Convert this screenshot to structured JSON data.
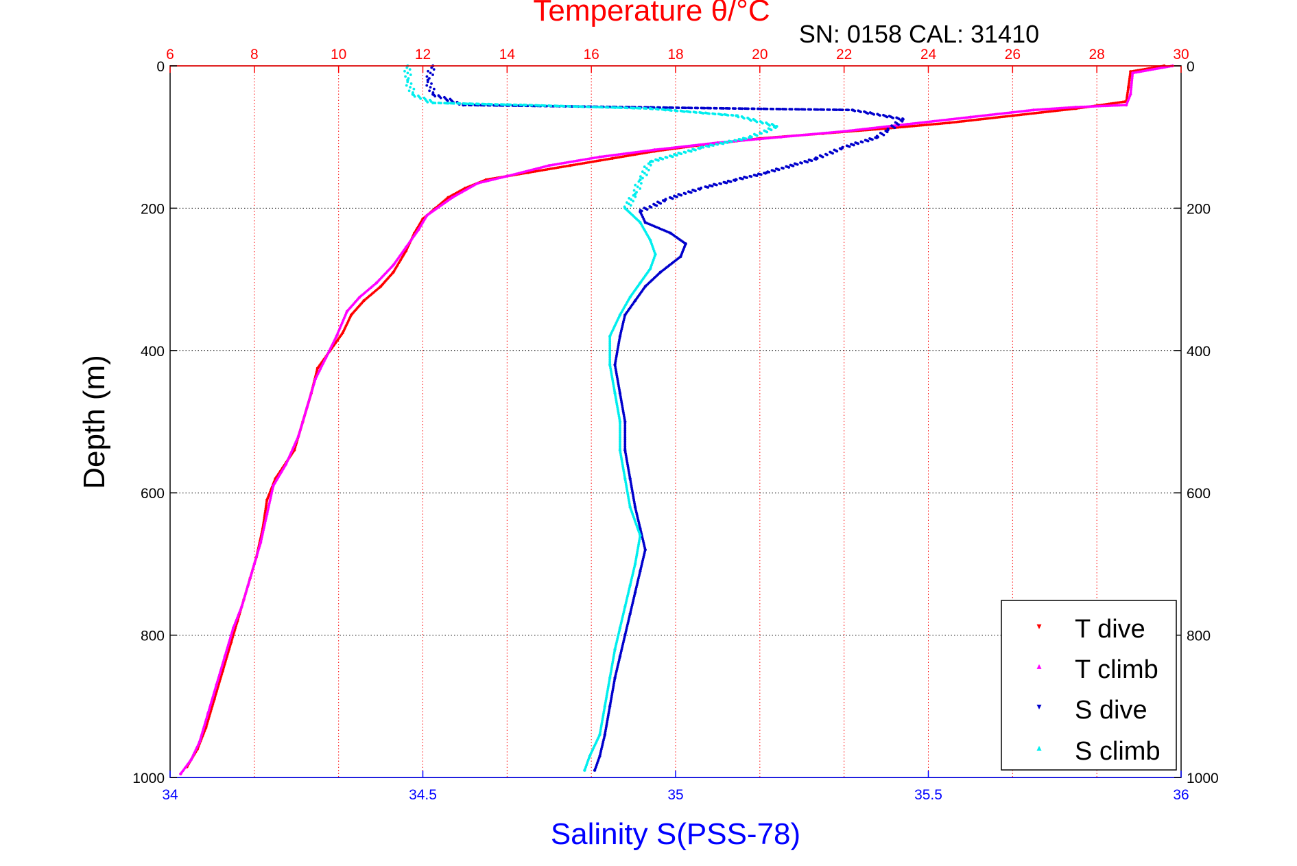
{
  "chart_data": {
    "type": "scatter",
    "title": "Temperature θ/°C",
    "annotation": "SN: 0158  CAL: 31410",
    "ylabel": "Depth (m)",
    "xlabel": "Salinity S(PSS-78)",
    "x2label": "Temperature θ/°C",
    "ylim": [
      0,
      1000
    ],
    "y_reversed": true,
    "xlim": [
      34,
      36
    ],
    "x2lim": [
      6,
      30
    ],
    "y_ticks": [
      0,
      200,
      400,
      600,
      800,
      1000
    ],
    "x_ticks": [
      34,
      34.5,
      35,
      35.5,
      36
    ],
    "x2_ticks": [
      6,
      8,
      10,
      12,
      14,
      16,
      18,
      20,
      22,
      24,
      26,
      28,
      30
    ],
    "x_tick_labels": [
      "34",
      "34.5",
      "35",
      "35.5",
      "36"
    ],
    "x2_tick_labels": [
      "6",
      "8",
      "10",
      "12",
      "14",
      "16",
      "18",
      "20",
      "22",
      "24",
      "26",
      "28",
      "30"
    ],
    "y_tick_labels": [
      "0",
      "200",
      "400",
      "600",
      "800",
      "1000"
    ],
    "grid": true,
    "legend_position": "bottom-right",
    "colors": {
      "t_dive": "#ff0000",
      "t_climb": "#ff00ff",
      "s_dive": "#0000cc",
      "s_climb": "#00eeee",
      "axis_top": "#ff0000",
      "axis_bottom": "#0000ff"
    },
    "series": [
      {
        "name": "T dive",
        "axis": "temperature",
        "points": [
          [
            29.6,
            0
          ],
          [
            28.8,
            8
          ],
          [
            28.75,
            30
          ],
          [
            28.7,
            50
          ],
          [
            27.5,
            60
          ],
          [
            26,
            70
          ],
          [
            24.5,
            80
          ],
          [
            23,
            88
          ],
          [
            21.5,
            95
          ],
          [
            20,
            102
          ],
          [
            18.5,
            112
          ],
          [
            17.5,
            120
          ],
          [
            16.5,
            130
          ],
          [
            15.5,
            140
          ],
          [
            14.5,
            150
          ],
          [
            13.5,
            160
          ],
          [
            13,
            172
          ],
          [
            12.6,
            185
          ],
          [
            12.3,
            200
          ],
          [
            12,
            215
          ],
          [
            11.8,
            235
          ],
          [
            11.6,
            260
          ],
          [
            11.3,
            290
          ],
          [
            11,
            310
          ],
          [
            10.6,
            330
          ],
          [
            10.3,
            350
          ],
          [
            10.1,
            375
          ],
          [
            9.8,
            400
          ],
          [
            9.5,
            425
          ],
          [
            9.35,
            460
          ],
          [
            9.15,
            500
          ],
          [
            8.95,
            540
          ],
          [
            8.5,
            580
          ],
          [
            8.3,
            610
          ],
          [
            8.2,
            650
          ],
          [
            8.05,
            690
          ],
          [
            7.9,
            720
          ],
          [
            7.75,
            750
          ],
          [
            7.6,
            780
          ],
          [
            7.45,
            810
          ],
          [
            7.25,
            850
          ],
          [
            7.05,
            890
          ],
          [
            6.85,
            930
          ],
          [
            6.65,
            960
          ],
          [
            6.4,
            985
          ]
        ]
      },
      {
        "name": "T climb",
        "axis": "temperature",
        "points": [
          [
            29.8,
            0
          ],
          [
            28.85,
            10
          ],
          [
            28.8,
            40
          ],
          [
            28.7,
            55
          ],
          [
            27.5,
            58
          ],
          [
            26.5,
            62
          ],
          [
            25,
            72
          ],
          [
            23.5,
            82
          ],
          [
            22,
            92
          ],
          [
            20.5,
            100
          ],
          [
            19,
            108
          ],
          [
            17.5,
            118
          ],
          [
            16.2,
            128
          ],
          [
            15,
            140
          ],
          [
            14,
            155
          ],
          [
            13.3,
            165
          ],
          [
            12.7,
            185
          ],
          [
            12.1,
            210
          ],
          [
            11.9,
            230
          ],
          [
            11.6,
            255
          ],
          [
            11.3,
            280
          ],
          [
            10.9,
            305
          ],
          [
            10.5,
            325
          ],
          [
            10.2,
            345
          ],
          [
            9.95,
            380
          ],
          [
            9.7,
            410
          ],
          [
            9.45,
            440
          ],
          [
            9.25,
            480
          ],
          [
            9.05,
            520
          ],
          [
            8.75,
            560
          ],
          [
            8.45,
            590
          ],
          [
            8.3,
            630
          ],
          [
            8.15,
            670
          ],
          [
            8,
            700
          ],
          [
            7.85,
            730
          ],
          [
            7.7,
            760
          ],
          [
            7.5,
            790
          ],
          [
            7.3,
            830
          ],
          [
            7.1,
            870
          ],
          [
            6.9,
            910
          ],
          [
            6.7,
            950
          ],
          [
            6.5,
            975
          ],
          [
            6.25,
            995
          ]
        ]
      },
      {
        "name": "S dive",
        "axis": "salinity",
        "points": [
          [
            34.52,
            0
          ],
          [
            34.51,
            20
          ],
          [
            34.52,
            40
          ],
          [
            34.58,
            55
          ],
          [
            35.35,
            62
          ],
          [
            35.45,
            75
          ],
          [
            35.42,
            90
          ],
          [
            35.4,
            100
          ],
          [
            35.33,
            115
          ],
          [
            35.28,
            130
          ],
          [
            35.18,
            150
          ],
          [
            35.12,
            160
          ],
          [
            35.05,
            172
          ],
          [
            34.98,
            188
          ],
          [
            34.93,
            205
          ],
          [
            34.94,
            220
          ],
          [
            34.99,
            235
          ],
          [
            35.02,
            250
          ],
          [
            35.01,
            268
          ],
          [
            34.97,
            290
          ],
          [
            34.94,
            310
          ],
          [
            34.92,
            330
          ],
          [
            34.9,
            350
          ],
          [
            34.89,
            380
          ],
          [
            34.88,
            420
          ],
          [
            34.89,
            460
          ],
          [
            34.9,
            500
          ],
          [
            34.9,
            540
          ],
          [
            34.91,
            580
          ],
          [
            34.92,
            620
          ],
          [
            34.93,
            650
          ],
          [
            34.94,
            680
          ],
          [
            34.93,
            710
          ],
          [
            34.92,
            740
          ],
          [
            34.91,
            770
          ],
          [
            34.9,
            800
          ],
          [
            34.89,
            830
          ],
          [
            34.88,
            860
          ],
          [
            34.87,
            900
          ],
          [
            34.86,
            940
          ],
          [
            34.85,
            970
          ],
          [
            34.84,
            990
          ]
        ]
      },
      {
        "name": "S climb",
        "axis": "salinity",
        "points": [
          [
            34.47,
            0
          ],
          [
            34.47,
            20
          ],
          [
            34.48,
            40
          ],
          [
            34.52,
            52
          ],
          [
            34.7,
            55
          ],
          [
            34.95,
            60
          ],
          [
            35.12,
            70
          ],
          [
            35.2,
            85
          ],
          [
            35.15,
            100
          ],
          [
            35.05,
            115
          ],
          [
            34.95,
            135
          ],
          [
            34.93,
            160
          ],
          [
            34.92,
            180
          ],
          [
            34.9,
            200
          ],
          [
            34.93,
            220
          ],
          [
            34.95,
            245
          ],
          [
            34.96,
            265
          ],
          [
            34.95,
            285
          ],
          [
            34.93,
            305
          ],
          [
            34.91,
            325
          ],
          [
            34.89,
            350
          ],
          [
            34.87,
            380
          ],
          [
            34.87,
            420
          ],
          [
            34.88,
            460
          ],
          [
            34.89,
            500
          ],
          [
            34.89,
            540
          ],
          [
            34.9,
            580
          ],
          [
            34.91,
            620
          ],
          [
            34.93,
            660
          ],
          [
            34.92,
            700
          ],
          [
            34.91,
            730
          ],
          [
            34.9,
            760
          ],
          [
            34.89,
            790
          ],
          [
            34.88,
            820
          ],
          [
            34.87,
            860
          ],
          [
            34.86,
            900
          ],
          [
            34.85,
            940
          ],
          [
            34.83,
            970
          ],
          [
            34.82,
            990
          ]
        ]
      }
    ]
  }
}
